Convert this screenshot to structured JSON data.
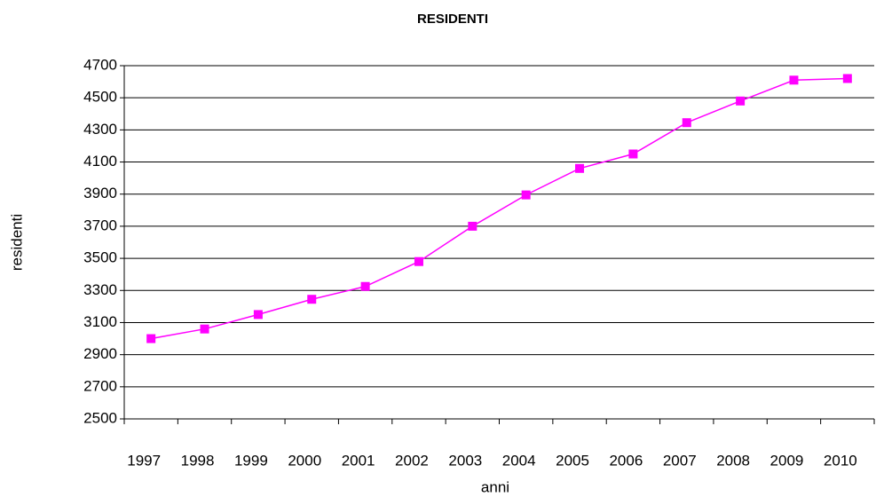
{
  "chart_data": {
    "type": "line",
    "title": "RESIDENTI",
    "x_label": "anni",
    "y_label": "residenti",
    "categories": [
      "1997",
      "1998",
      "1999",
      "2000",
      "2001",
      "2002",
      "2003",
      "2004",
      "2005",
      "2006",
      "2007",
      "2008",
      "2009",
      "2010"
    ],
    "series": [
      {
        "name": "residenti",
        "color": "#ff00ff",
        "values": [
          3000,
          3060,
          3150,
          3245,
          3325,
          3480,
          3700,
          3895,
          4060,
          4150,
          4345,
          4480,
          4610,
          4620
        ]
      }
    ],
    "ylim": [
      2500,
      4700
    ],
    "yticks": [
      2500,
      2700,
      2900,
      3100,
      3300,
      3500,
      3700,
      3900,
      4100,
      4300,
      4500,
      4700
    ],
    "grid": true
  }
}
